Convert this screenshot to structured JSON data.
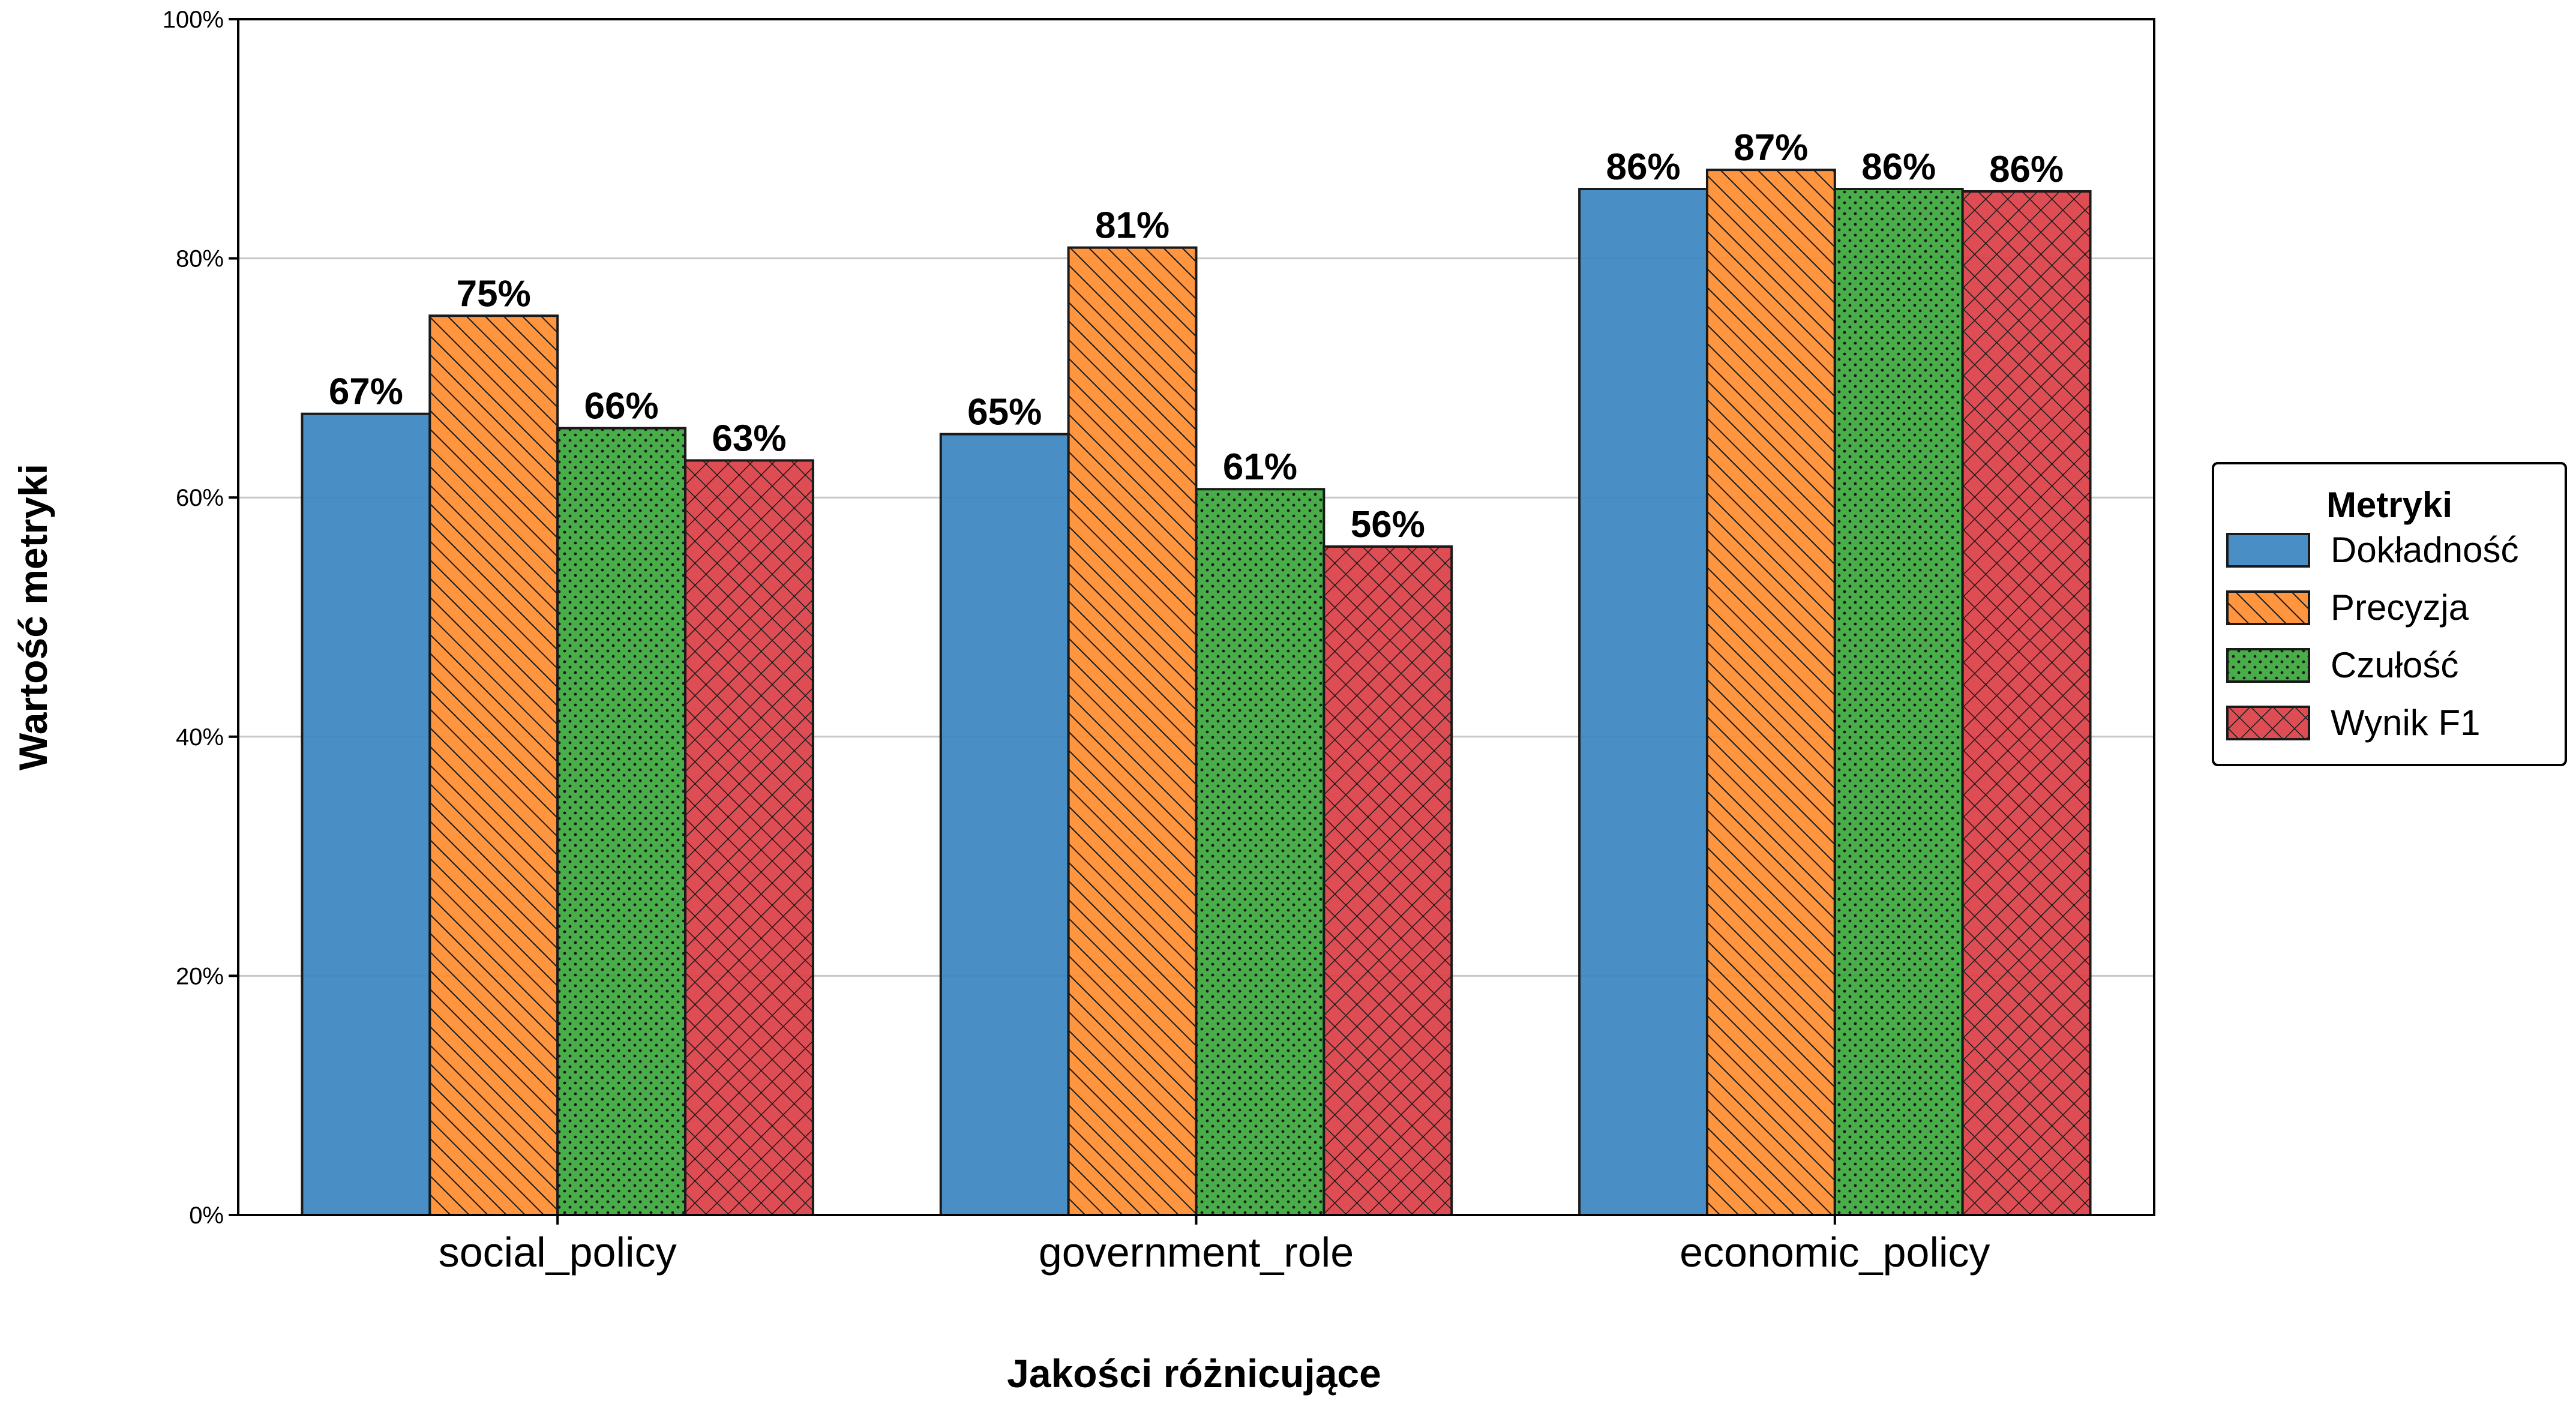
{
  "chart_data": {
    "type": "bar",
    "xlabel": "Jakości różnicujące",
    "ylabel": "Wartość metryki",
    "ylim": [
      0,
      100
    ],
    "yticks": [
      "0%",
      "20%",
      "40%",
      "60%",
      "80%",
      "100%"
    ],
    "grid": "horizontal",
    "legend_title": "Metryki",
    "legend_position": "right",
    "categories": [
      "social_policy",
      "government_role",
      "economic_policy"
    ],
    "series": [
      {
        "name": "Dokładność",
        "color": "#3a86c0",
        "pattern": "solid",
        "values": [
          67,
          65.3,
          85.8
        ],
        "labels": [
          "67%",
          "65%",
          "86%"
        ]
      },
      {
        "name": "Precyzja",
        "color": "#ff8c2e",
        "pattern": "diagonal-hatch",
        "values": [
          75.2,
          80.9,
          87.4
        ],
        "labels": [
          "75%",
          "81%",
          "87%"
        ]
      },
      {
        "name": "Czułość",
        "color": "#3aa63a",
        "pattern": "dots",
        "values": [
          65.8,
          60.7,
          85.8
        ],
        "labels": [
          "66%",
          "61%",
          "86%"
        ]
      },
      {
        "name": "Wynik F1",
        "color": "#dc3e45",
        "pattern": "crosshatch",
        "values": [
          63.1,
          55.9,
          85.6
        ],
        "labels": [
          "63%",
          "56%",
          "86%"
        ]
      }
    ]
  }
}
